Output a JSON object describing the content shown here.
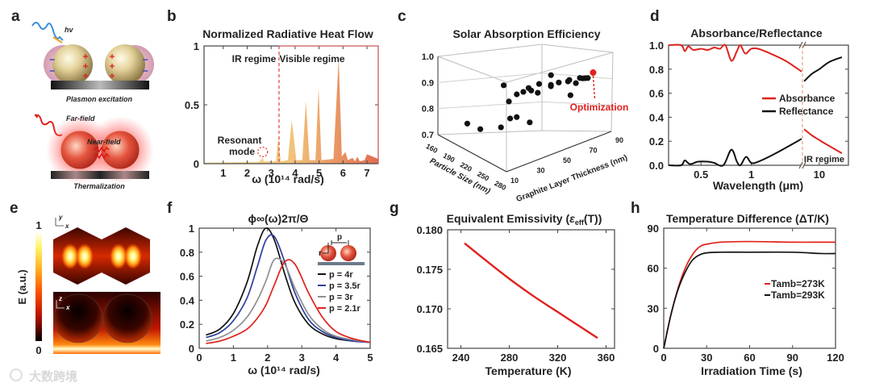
{
  "panel_labels": {
    "a": "a",
    "b": "b",
    "c": "c",
    "d": "d",
    "e": "e",
    "f": "f",
    "g": "g",
    "h": "h"
  },
  "panel_a": {
    "hv": "hv",
    "plasmon_caption": "Plasmon excitation",
    "far_field": "Far-field",
    "near_field": "Near-field",
    "thermal_caption": "Thermalization"
  },
  "panel_e": {
    "colorbar_label": "E (a.u.)",
    "colorbar_max": "1",
    "colorbar_min": "0",
    "top_axes": {
      "vertical": "y",
      "horizontal": "x"
    },
    "bottom_axes": {
      "vertical": "z",
      "horizontal": "x"
    }
  },
  "watermark": "大数跨境",
  "colors": {
    "red": "#e0211d",
    "blue": "#2b3f9c",
    "gray": "#8f8f8f",
    "black": "#111111",
    "peak_start": "#f2eaa4",
    "peak_end": "#e06c4f"
  },
  "chart_data": [
    {
      "type": "area",
      "title": "Normalized Radiative Heat Flow",
      "xlabel": "ω (10¹⁴ rad/s)",
      "ylabel": "",
      "xlim": [
        0.2,
        7.47
      ],
      "ylim": [
        0,
        1
      ],
      "xticks": [
        "1",
        "2",
        "3",
        "4",
        "5",
        "6",
        "7"
      ],
      "yticks": [
        "0",
        "0.5",
        "1"
      ],
      "x": [
        0.2,
        2.5,
        2.6,
        2.65,
        2.7,
        3.2,
        3.3,
        3.4,
        3.7,
        3.86,
        4.05,
        4.3,
        4.45,
        4.6,
        4.85,
        4.98,
        5.1,
        5.6,
        5.82,
        5.95,
        6.1,
        6.2,
        6.4,
        6.5,
        6.6,
        6.7,
        6.9,
        7.0,
        7.47
      ],
      "y": [
        0.01,
        0.015,
        0.04,
        0.05,
        0.02,
        0.02,
        0.22,
        0.02,
        0.03,
        0.37,
        0.03,
        0.03,
        0.53,
        0.03,
        0.03,
        0.64,
        0.03,
        0.04,
        0.9,
        0.06,
        0.1,
        0.03,
        0.05,
        0.02,
        0.06,
        0.02,
        0.03,
        0.08,
        0.04
      ],
      "divider_x": 3.33,
      "regions": [
        "IR regime",
        "Visible regime"
      ],
      "annotation": {
        "line1": "Resonant",
        "line2": "mode",
        "x": 2.65,
        "y": 0.1
      }
    },
    {
      "type": "scatter",
      "title": "Solar Absorption Efficiency",
      "xlabel": "Particle Size (nm)",
      "ylabel": "Graphite Layer Thickness (nm)",
      "zlabel": "",
      "particle_range": [
        160,
        280
      ],
      "thickness_range": [
        10,
        90
      ],
      "zlim": [
        0.7,
        1.0
      ],
      "particle_ticks": [
        "160",
        "190",
        "220",
        "250",
        "280"
      ],
      "thickness_ticks": [
        "10",
        "30",
        "50",
        "70",
        "90"
      ],
      "zticks": [
        "0.7",
        "0.8",
        "0.9",
        "1.0"
      ],
      "points": [
        [
          184,
          22,
          0.762
        ],
        [
          184,
          32,
          0.736
        ],
        [
          220,
          32,
          0.771
        ],
        [
          220,
          39,
          0.796
        ],
        [
          220,
          44,
          0.796
        ],
        [
          220,
          54,
          0.767
        ],
        [
          220,
          34,
          0.92
        ],
        [
          220,
          38,
          0.858
        ],
        [
          220,
          44,
          0.878
        ],
        [
          220,
          49,
          0.882
        ],
        [
          220,
          53,
          0.892
        ],
        [
          220,
          55,
          0.881
        ],
        [
          220,
          60,
          0.868
        ],
        [
          220,
          61,
          0.899
        ],
        [
          220,
          70,
          0.882
        ],
        [
          220,
          70,
          0.887
        ],
        [
          220,
          70,
          0.922
        ],
        [
          256,
          60,
          0.921
        ],
        [
          256,
          67,
          0.916
        ],
        [
          256,
          68,
          0.92
        ],
        [
          256,
          69,
          0.863
        ],
        [
          256,
          73,
          0.902
        ],
        [
          256,
          76,
          0.917
        ],
        [
          256,
          78,
          0.913
        ],
        [
          256,
          80,
          0.911
        ],
        [
          256,
          82,
          0.909
        ]
      ],
      "optimum": {
        "point": [
          256,
          86,
          0.924
        ],
        "label": "Optimization"
      }
    },
    {
      "type": "line",
      "title": "Absorbance/Reflectance",
      "xlabel": "Wavelength (μm)",
      "ylabel": "",
      "xscale": "log (broken axis)",
      "left_xlim": [
        0.32,
        2.0
      ],
      "right_xlim": [
        8,
        15
      ],
      "ylim": [
        0,
        1
      ],
      "xticks": [
        {
          "label": "0.5",
          "value": 0.5
        },
        {
          "label": "1",
          "value": 1
        },
        {
          "label": "10",
          "value": 10
        }
      ],
      "yticks": [
        "0.0",
        "0.2",
        "0.4",
        "0.6",
        "0.8",
        "1.0"
      ],
      "series": [
        {
          "name": "Absorbance",
          "color": "#e0211d",
          "left": [
            [
              0.32,
              1.0
            ],
            [
              0.38,
              1.0
            ],
            [
              0.4,
              0.95
            ],
            [
              0.42,
              0.99
            ],
            [
              0.45,
              0.96
            ],
            [
              0.5,
              0.97
            ],
            [
              0.55,
              0.96
            ],
            [
              0.6,
              0.98
            ],
            [
              0.65,
              0.97
            ],
            [
              0.7,
              1.0
            ],
            [
              0.76,
              0.87
            ],
            [
              0.82,
              0.95
            ],
            [
              0.86,
              1.0
            ],
            [
              0.92,
              0.93
            ],
            [
              1.0,
              0.97
            ],
            [
              1.1,
              0.97
            ],
            [
              1.3,
              0.93
            ],
            [
              1.6,
              0.87
            ],
            [
              2.0,
              0.78
            ]
          ],
          "right": [
            [
              8.1,
              0.3
            ],
            [
              9,
              0.25
            ],
            [
              10,
              0.21
            ],
            [
              11.5,
              0.16
            ],
            [
              13.7,
              0.1
            ]
          ]
        },
        {
          "name": "Reflectance",
          "color": "#111111",
          "left": [
            [
              0.32,
              0.0
            ],
            [
              0.38,
              0.0
            ],
            [
              0.4,
              0.04
            ],
            [
              0.43,
              0.01
            ],
            [
              0.48,
              0.03
            ],
            [
              0.55,
              0.03
            ],
            [
              0.6,
              0.02
            ],
            [
              0.68,
              0.0
            ],
            [
              0.76,
              0.13
            ],
            [
              0.82,
              0.03
            ],
            [
              0.86,
              0.0
            ],
            [
              0.93,
              0.07
            ],
            [
              1.0,
              0.02
            ],
            [
              1.1,
              0.03
            ],
            [
              1.4,
              0.1
            ],
            [
              2.0,
              0.22
            ]
          ],
          "right": [
            [
              8.1,
              0.7
            ],
            [
              9,
              0.76
            ],
            [
              10,
              0.8
            ],
            [
              11.5,
              0.86
            ],
            [
              13.7,
              0.9
            ]
          ]
        }
      ],
      "region_label": "IR regime",
      "legend": "center-right"
    },
    {
      "type": "line",
      "title": "ϕ∞(ω)2π/Θ",
      "xlabel": "ω (10¹⁴ rad/s)",
      "ylabel": "",
      "xlim": [
        0,
        5
      ],
      "ylim": [
        0,
        1
      ],
      "xticks": [
        "0",
        "1",
        "2",
        "3",
        "4",
        "5"
      ],
      "yticks": [
        "0",
        "0.2",
        "0.4",
        "0.6",
        "0.8",
        "1"
      ],
      "x": [
        0.2,
        0.6,
        1.0,
        1.4,
        1.7,
        1.95,
        2.2,
        2.5,
        2.8,
        3.2,
        3.6,
        4.0,
        4.5,
        5.0
      ],
      "series": [
        {
          "name": "p = 4r",
          "color": "#111111",
          "values": [
            0.11,
            0.16,
            0.29,
            0.55,
            0.85,
            1.0,
            0.9,
            0.62,
            0.38,
            0.2,
            0.12,
            0.08,
            0.06,
            0.05
          ]
        },
        {
          "name": "p = 3.5r",
          "color": "#2b3f9c",
          "values": [
            0.09,
            0.13,
            0.23,
            0.42,
            0.68,
            0.9,
            0.93,
            0.72,
            0.46,
            0.24,
            0.14,
            0.09,
            0.06,
            0.05
          ]
        },
        {
          "name": "p = 3r",
          "color": "#8f8f8f",
          "values": [
            0.06,
            0.09,
            0.15,
            0.26,
            0.4,
            0.56,
            0.74,
            0.7,
            0.5,
            0.28,
            0.16,
            0.1,
            0.07,
            0.05
          ]
        },
        {
          "name": "p = 2.1r",
          "color": "#e0211d",
          "values": [
            0.04,
            0.06,
            0.1,
            0.16,
            0.25,
            0.36,
            0.53,
            0.72,
            0.7,
            0.46,
            0.26,
            0.14,
            0.08,
            0.05
          ]
        }
      ],
      "inset_labels": {
        "radius": "r",
        "period": "p"
      },
      "legend": "right"
    },
    {
      "type": "line",
      "title_prefix": "Equivalent  Emissivity (",
      "title_symbol": "ε",
      "title_sub": "eff",
      "title_suffix": "(T))",
      "xlabel": "Temperature (K)",
      "ylabel": "",
      "xlim": [
        229,
        367
      ],
      "ylim": [
        0.165,
        0.18
      ],
      "xticks": [
        "240",
        "280",
        "320",
        "360"
      ],
      "yticks": [
        "0.165",
        "0.170",
        "0.175",
        "0.180"
      ],
      "x": [
        243,
        260,
        280,
        300,
        320,
        340,
        353
      ],
      "y": [
        0.1783,
        0.1762,
        0.1738,
        0.1716,
        0.1696,
        0.1676,
        0.1663
      ],
      "color": "#e0211d"
    },
    {
      "type": "line",
      "title": "Temperature Difference (ΔT/K)",
      "xlabel": "Irradiation Time (s)",
      "ylabel": "",
      "xlim": [
        0,
        120
      ],
      "ylim": [
        0,
        90
      ],
      "xticks": [
        "0",
        "30",
        "60",
        "90",
        "120"
      ],
      "yticks": [
        "0",
        "30",
        "60",
        "90"
      ],
      "x": [
        0,
        5,
        10,
        15,
        20,
        25,
        30,
        40,
        60,
        90,
        110,
        120
      ],
      "series": [
        {
          "name": "Tamb=273K",
          "color": "#e0211d",
          "values": [
            0,
            25,
            45,
            60,
            70,
            76,
            78,
            79.5,
            80,
            79.5,
            79.5,
            79.5
          ]
        },
        {
          "name": "Tamb=293K",
          "color": "#111111",
          "values": [
            0,
            25,
            44,
            57,
            66,
            70,
            71.5,
            72,
            72,
            72,
            71,
            71
          ]
        }
      ],
      "legend": "center-right"
    }
  ]
}
